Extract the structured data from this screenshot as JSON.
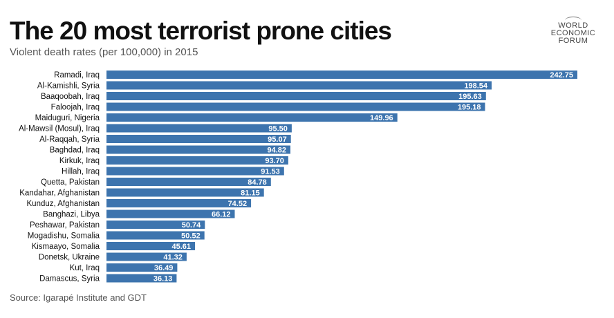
{
  "brand": {
    "logo_lines": [
      "WORLD",
      "ECONOMIC",
      "FORUM"
    ],
    "bar_color": "#3d74ae",
    "value_label_color": "#ffffff",
    "category_label_color": "#111111"
  },
  "chart_data": {
    "type": "bar",
    "orientation": "horizontal",
    "title": "The 20 most terrorist prone cities",
    "subtitle": "Violent death rates (per 100,000) in 2015",
    "source": "Source: Igarapé Institute and GDT",
    "xlabel": "",
    "ylabel": "",
    "xlim": [
      0,
      242.75
    ],
    "grid": false,
    "legend": "none",
    "categories": [
      "Ramadi, Iraq",
      "Al-Kamishli, Syria",
      "Baaqoobah, Iraq",
      "Faloojah, Iraq",
      "Maiduguri, Nigeria",
      "Al-Mawsil (Mosul), Iraq",
      "Al-Raqqah, Syria",
      "Baghdad, Iraq",
      "Kirkuk, Iraq",
      "Hillah, Iraq",
      "Quetta, Pakistan",
      "Kandahar, Afghanistan",
      "Kunduz, Afghanistan",
      "Banghazi, Libya",
      "Peshawar, Pakistan",
      "Mogadishu, Somalia",
      "Kismaayo, Somalia",
      "Donetsk, Ukraine",
      "Kut, Iraq",
      "Damascus, Syria"
    ],
    "values": [
      242.75,
      198.54,
      195.63,
      195.18,
      149.96,
      95.5,
      95.07,
      94.82,
      93.7,
      91.53,
      84.78,
      81.15,
      74.52,
      66.12,
      50.74,
      50.52,
      45.61,
      41.32,
      36.49,
      36.13
    ],
    "value_labels": [
      "242.75",
      "198.54",
      "195.63",
      "195.18",
      "149.96",
      "95.50",
      "95.07",
      "94.82",
      "93.70",
      "91.53",
      "84.78",
      "81.15",
      "74.52",
      "66.12",
      "50.74",
      "50.52",
      "45.61",
      "41.32",
      "36.49",
      "36.13"
    ]
  }
}
